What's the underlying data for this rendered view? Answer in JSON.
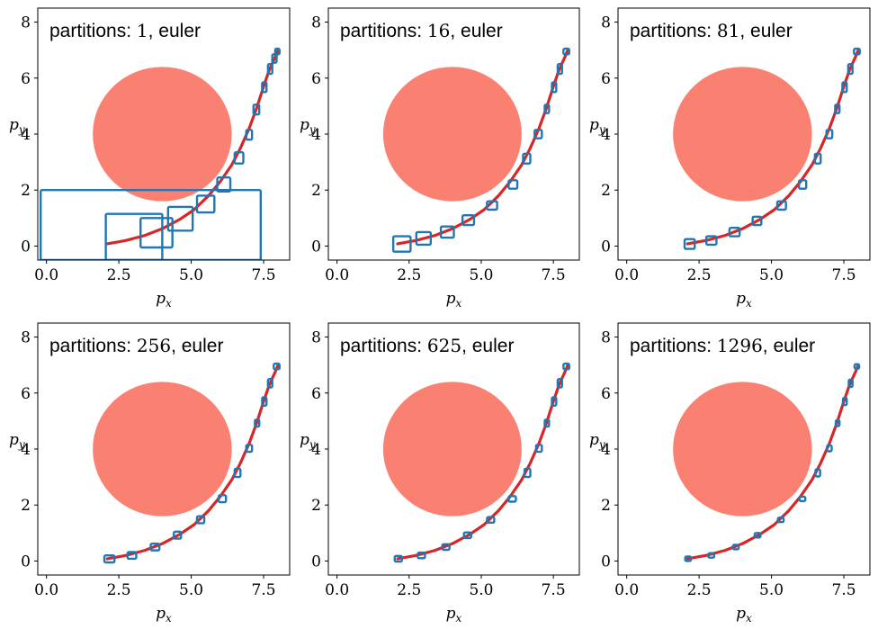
{
  "colors": {
    "obstacle": "#fa8072",
    "trajectory": "#d62728",
    "boxes": "#1f77b4",
    "background": "#ffffff"
  },
  "chart_data": [
    {
      "type": "scatter",
      "title": {
        "prefix": "partitions: ",
        "number": "1",
        "suffix": ", euler"
      },
      "xlabel": "p",
      "xlabel_sub": "x",
      "ylabel": "p",
      "ylabel_sub": "y",
      "xlim": [
        -0.3,
        8.4
      ],
      "ylim": [
        -0.5,
        8.5
      ],
      "xticks": [
        0.0,
        2.5,
        5.0,
        7.5
      ],
      "xtick_labels": [
        "0.0",
        "2.5",
        "5.0",
        "7.5"
      ],
      "yticks": [
        0,
        2,
        4,
        6,
        8
      ],
      "ytick_labels": [
        "0",
        "2",
        "4",
        "6",
        "8"
      ],
      "obstacle": {
        "center": [
          4.0,
          4.0
        ],
        "radius": 2.4
      },
      "trajectory": {
        "x": [
          2.1,
          2.75,
          3.4,
          4.0,
          4.6,
          5.1,
          5.6,
          6.0,
          6.4,
          6.7,
          7.0,
          7.25,
          7.5,
          7.7,
          7.9,
          8.0
        ],
        "y": [
          0.08,
          0.2,
          0.38,
          0.62,
          0.95,
          1.3,
          1.8,
          2.3,
          2.9,
          3.5,
          4.2,
          4.9,
          5.7,
          6.3,
          6.75,
          7.0
        ]
      },
      "boxes": [
        {
          "x": [
            -0.2,
            7.4
          ],
          "y": [
            -0.5,
            2.0
          ]
        },
        {
          "x": [
            2.05,
            4.0
          ],
          "y": [
            -0.5,
            1.15
          ]
        },
        {
          "x": [
            3.25,
            4.35
          ],
          "y": [
            -0.05,
            1.0
          ]
        },
        {
          "x": [
            4.2,
            5.05
          ],
          "y": [
            0.55,
            1.4
          ]
        },
        {
          "x": [
            5.2,
            5.8
          ],
          "y": [
            1.2,
            1.8
          ]
        },
        {
          "x": [
            5.9,
            6.35
          ],
          "y": [
            1.95,
            2.45
          ]
        },
        {
          "x": [
            6.5,
            6.8
          ],
          "y": [
            2.95,
            3.35
          ]
        },
        {
          "x": [
            6.9,
            7.1
          ],
          "y": [
            3.8,
            4.15
          ]
        },
        {
          "x": [
            7.15,
            7.35
          ],
          "y": [
            4.7,
            5.05
          ]
        },
        {
          "x": [
            7.45,
            7.6
          ],
          "y": [
            5.5,
            5.85
          ]
        },
        {
          "x": [
            7.65,
            7.8
          ],
          "y": [
            6.15,
            6.5
          ]
        },
        {
          "x": [
            7.8,
            7.95
          ],
          "y": [
            6.55,
            6.85
          ]
        },
        {
          "x": [
            7.9,
            8.05
          ],
          "y": [
            6.85,
            7.05
          ]
        }
      ]
    },
    {
      "type": "scatter",
      "title": {
        "prefix": "partitions: ",
        "number": "16",
        "suffix": ", euler"
      },
      "xlabel": "p",
      "xlabel_sub": "x",
      "ylabel": "p",
      "ylabel_sub": "y",
      "xlim": [
        -0.3,
        8.4
      ],
      "ylim": [
        -0.5,
        8.5
      ],
      "xticks": [
        0.0,
        2.5,
        5.0,
        7.5
      ],
      "xtick_labels": [
        "0.0",
        "2.5",
        "5.0",
        "7.5"
      ],
      "yticks": [
        0,
        2,
        4,
        6,
        8
      ],
      "ytick_labels": [
        "0",
        "2",
        "4",
        "6",
        "8"
      ],
      "obstacle": {
        "center": [
          4.0,
          4.0
        ],
        "radius": 2.4
      },
      "trajectory": {
        "x": [
          2.1,
          2.75,
          3.4,
          4.0,
          4.6,
          5.1,
          5.6,
          6.0,
          6.4,
          6.7,
          7.0,
          7.25,
          7.5,
          7.7,
          7.9,
          8.0
        ],
        "y": [
          0.08,
          0.2,
          0.38,
          0.62,
          0.95,
          1.3,
          1.8,
          2.3,
          2.9,
          3.5,
          4.2,
          4.9,
          5.7,
          6.3,
          6.75,
          7.0
        ]
      },
      "boxes": [
        {
          "x": [
            1.95,
            2.55
          ],
          "y": [
            -0.2,
            0.35
          ]
        },
        {
          "x": [
            2.75,
            3.25
          ],
          "y": [
            0.05,
            0.5
          ]
        },
        {
          "x": [
            3.6,
            4.05
          ],
          "y": [
            0.3,
            0.7
          ]
        },
        {
          "x": [
            4.35,
            4.75
          ],
          "y": [
            0.75,
            1.1
          ]
        },
        {
          "x": [
            5.2,
            5.55
          ],
          "y": [
            1.3,
            1.6
          ]
        },
        {
          "x": [
            5.95,
            6.25
          ],
          "y": [
            2.05,
            2.35
          ]
        },
        {
          "x": [
            6.45,
            6.7
          ],
          "y": [
            2.95,
            3.3
          ]
        },
        {
          "x": [
            6.85,
            7.1
          ],
          "y": [
            3.85,
            4.15
          ]
        },
        {
          "x": [
            7.2,
            7.35
          ],
          "y": [
            4.75,
            5.05
          ]
        },
        {
          "x": [
            7.45,
            7.6
          ],
          "y": [
            5.5,
            5.85
          ]
        },
        {
          "x": [
            7.65,
            7.8
          ],
          "y": [
            6.15,
            6.5
          ]
        },
        {
          "x": [
            7.85,
            8.05
          ],
          "y": [
            6.85,
            7.05
          ]
        }
      ]
    },
    {
      "type": "scatter",
      "title": {
        "prefix": "partitions: ",
        "number": "81",
        "suffix": ", euler"
      },
      "xlabel": "p",
      "xlabel_sub": "x",
      "ylabel": "p",
      "ylabel_sub": "y",
      "xlim": [
        -0.3,
        8.4
      ],
      "ylim": [
        -0.5,
        8.5
      ],
      "xticks": [
        0.0,
        2.5,
        5.0,
        7.5
      ],
      "xtick_labels": [
        "0.0",
        "2.5",
        "5.0",
        "7.5"
      ],
      "yticks": [
        0,
        2,
        4,
        6,
        8
      ],
      "ytick_labels": [
        "0",
        "2",
        "4",
        "6",
        "8"
      ],
      "obstacle": {
        "center": [
          4.0,
          4.0
        ],
        "radius": 2.4
      },
      "trajectory": {
        "x": [
          2.1,
          2.75,
          3.4,
          4.0,
          4.6,
          5.1,
          5.6,
          6.0,
          6.4,
          6.7,
          7.0,
          7.25,
          7.5,
          7.7,
          7.9,
          8.0
        ],
        "y": [
          0.08,
          0.2,
          0.38,
          0.62,
          0.95,
          1.3,
          1.8,
          2.3,
          2.9,
          3.5,
          4.2,
          4.9,
          5.7,
          6.3,
          6.75,
          7.0
        ]
      },
      "boxes": [
        {
          "x": [
            2.0,
            2.35
          ],
          "y": [
            -0.1,
            0.25
          ]
        },
        {
          "x": [
            2.75,
            3.1
          ],
          "y": [
            0.05,
            0.35
          ]
        },
        {
          "x": [
            3.55,
            3.9
          ],
          "y": [
            0.35,
            0.65
          ]
        },
        {
          "x": [
            4.35,
            4.65
          ],
          "y": [
            0.75,
            1.05
          ]
        },
        {
          "x": [
            5.2,
            5.5
          ],
          "y": [
            1.3,
            1.6
          ]
        },
        {
          "x": [
            5.95,
            6.2
          ],
          "y": [
            2.05,
            2.35
          ]
        },
        {
          "x": [
            6.5,
            6.7
          ],
          "y": [
            2.95,
            3.3
          ]
        },
        {
          "x": [
            6.9,
            7.1
          ],
          "y": [
            3.85,
            4.15
          ]
        },
        {
          "x": [
            7.2,
            7.35
          ],
          "y": [
            4.75,
            5.05
          ]
        },
        {
          "x": [
            7.45,
            7.6
          ],
          "y": [
            5.5,
            5.85
          ]
        },
        {
          "x": [
            7.65,
            7.8
          ],
          "y": [
            6.15,
            6.5
          ]
        },
        {
          "x": [
            7.85,
            8.05
          ],
          "y": [
            6.85,
            7.05
          ]
        }
      ]
    },
    {
      "type": "scatter",
      "title": {
        "prefix": "partitions: ",
        "number": "256",
        "suffix": ", euler"
      },
      "xlabel": "p",
      "xlabel_sub": "x",
      "ylabel": "p",
      "ylabel_sub": "y",
      "xlim": [
        -0.3,
        8.4
      ],
      "ylim": [
        -0.5,
        8.5
      ],
      "xticks": [
        0.0,
        2.5,
        5.0,
        7.5
      ],
      "xtick_labels": [
        "0.0",
        "2.5",
        "5.0",
        "7.5"
      ],
      "yticks": [
        0,
        2,
        4,
        6,
        8
      ],
      "ytick_labels": [
        "0",
        "2",
        "4",
        "6",
        "8"
      ],
      "obstacle": {
        "center": [
          4.0,
          4.0
        ],
        "radius": 2.4
      },
      "trajectory": {
        "x": [
          2.1,
          2.75,
          3.4,
          4.0,
          4.6,
          5.1,
          5.6,
          6.0,
          6.4,
          6.7,
          7.0,
          7.25,
          7.5,
          7.7,
          7.9,
          8.0
        ],
        "y": [
          0.08,
          0.2,
          0.38,
          0.62,
          0.95,
          1.3,
          1.8,
          2.3,
          2.9,
          3.5,
          4.2,
          4.9,
          5.7,
          6.3,
          6.75,
          7.0
        ]
      },
      "boxes": [
        {
          "x": [
            2.0,
            2.35
          ],
          "y": [
            -0.05,
            0.2
          ]
        },
        {
          "x": [
            2.8,
            3.1
          ],
          "y": [
            0.08,
            0.32
          ]
        },
        {
          "x": [
            3.6,
            3.9
          ],
          "y": [
            0.38,
            0.62
          ]
        },
        {
          "x": [
            4.4,
            4.65
          ],
          "y": [
            0.8,
            1.05
          ]
        },
        {
          "x": [
            5.2,
            5.45
          ],
          "y": [
            1.35,
            1.6
          ]
        },
        {
          "x": [
            5.95,
            6.2
          ],
          "y": [
            2.1,
            2.35
          ]
        },
        {
          "x": [
            6.5,
            6.7
          ],
          "y": [
            3.0,
            3.3
          ]
        },
        {
          "x": [
            6.9,
            7.1
          ],
          "y": [
            3.9,
            4.15
          ]
        },
        {
          "x": [
            7.2,
            7.35
          ],
          "y": [
            4.8,
            5.05
          ]
        },
        {
          "x": [
            7.45,
            7.6
          ],
          "y": [
            5.55,
            5.85
          ]
        },
        {
          "x": [
            7.65,
            7.8
          ],
          "y": [
            6.2,
            6.5
          ]
        },
        {
          "x": [
            7.85,
            8.05
          ],
          "y": [
            6.85,
            7.05
          ]
        }
      ]
    },
    {
      "type": "scatter",
      "title": {
        "prefix": "partitions: ",
        "number": "625",
        "suffix": ", euler"
      },
      "xlabel": "p",
      "xlabel_sub": "x",
      "ylabel": "p",
      "ylabel_sub": "y",
      "xlim": [
        -0.3,
        8.4
      ],
      "ylim": [
        -0.5,
        8.5
      ],
      "xticks": [
        0.0,
        2.5,
        5.0,
        7.5
      ],
      "xtick_labels": [
        "0.0",
        "2.5",
        "5.0",
        "7.5"
      ],
      "yticks": [
        0,
        2,
        4,
        6,
        8
      ],
      "ytick_labels": [
        "0",
        "2",
        "4",
        "6",
        "8"
      ],
      "obstacle": {
        "center": [
          4.0,
          4.0
        ],
        "radius": 2.4
      },
      "trajectory": {
        "x": [
          2.1,
          2.75,
          3.4,
          4.0,
          4.6,
          5.1,
          5.6,
          6.0,
          6.4,
          6.7,
          7.0,
          7.25,
          7.5,
          7.7,
          7.9,
          8.0
        ],
        "y": [
          0.08,
          0.2,
          0.38,
          0.62,
          0.95,
          1.3,
          1.8,
          2.3,
          2.9,
          3.5,
          4.2,
          4.9,
          5.7,
          6.3,
          6.75,
          7.0
        ]
      },
      "boxes": [
        {
          "x": [
            2.0,
            2.25
          ],
          "y": [
            -0.02,
            0.18
          ]
        },
        {
          "x": [
            2.8,
            3.05
          ],
          "y": [
            0.1,
            0.3
          ]
        },
        {
          "x": [
            3.65,
            3.9
          ],
          "y": [
            0.4,
            0.6
          ]
        },
        {
          "x": [
            4.4,
            4.65
          ],
          "y": [
            0.82,
            1.02
          ]
        },
        {
          "x": [
            5.2,
            5.45
          ],
          "y": [
            1.37,
            1.57
          ]
        },
        {
          "x": [
            5.95,
            6.2
          ],
          "y": [
            2.12,
            2.32
          ]
        },
        {
          "x": [
            6.5,
            6.7
          ],
          "y": [
            3.0,
            3.3
          ]
        },
        {
          "x": [
            6.9,
            7.1
          ],
          "y": [
            3.9,
            4.15
          ]
        },
        {
          "x": [
            7.2,
            7.35
          ],
          "y": [
            4.8,
            5.05
          ]
        },
        {
          "x": [
            7.45,
            7.6
          ],
          "y": [
            5.55,
            5.85
          ]
        },
        {
          "x": [
            7.65,
            7.8
          ],
          "y": [
            6.2,
            6.5
          ]
        },
        {
          "x": [
            7.85,
            8.05
          ],
          "y": [
            6.85,
            7.05
          ]
        }
      ]
    },
    {
      "type": "scatter",
      "title": {
        "prefix": "partitions: ",
        "number": "1296",
        "suffix": ", euler"
      },
      "xlabel": "p",
      "xlabel_sub": "x",
      "ylabel": "p",
      "ylabel_sub": "y",
      "xlim": [
        -0.3,
        8.4
      ],
      "ylim": [
        -0.5,
        8.5
      ],
      "xticks": [
        0.0,
        2.5,
        5.0,
        7.5
      ],
      "xtick_labels": [
        "0.0",
        "2.5",
        "5.0",
        "7.5"
      ],
      "yticks": [
        0,
        2,
        4,
        6,
        8
      ],
      "ytick_labels": [
        "0",
        "2",
        "4",
        "6",
        "8"
      ],
      "obstacle": {
        "center": [
          4.0,
          4.0
        ],
        "radius": 2.4
      },
      "trajectory": {
        "x": [
          2.1,
          2.75,
          3.4,
          4.0,
          4.6,
          5.1,
          5.6,
          6.0,
          6.4,
          6.7,
          7.0,
          7.25,
          7.5,
          7.7,
          7.9,
          8.0
        ],
        "y": [
          0.08,
          0.2,
          0.38,
          0.62,
          0.95,
          1.3,
          1.8,
          2.3,
          2.9,
          3.5,
          4.2,
          4.9,
          5.7,
          6.3,
          6.75,
          7.0
        ]
      },
      "boxes": [
        {
          "x": [
            2.02,
            2.22
          ],
          "y": [
            0.0,
            0.16
          ]
        },
        {
          "x": [
            2.82,
            3.02
          ],
          "y": [
            0.12,
            0.28
          ]
        },
        {
          "x": [
            3.67,
            3.87
          ],
          "y": [
            0.42,
            0.58
          ]
        },
        {
          "x": [
            4.42,
            4.62
          ],
          "y": [
            0.84,
            1.0
          ]
        },
        {
          "x": [
            5.22,
            5.42
          ],
          "y": [
            1.39,
            1.55
          ]
        },
        {
          "x": [
            5.97,
            6.17
          ],
          "y": [
            2.14,
            2.3
          ]
        },
        {
          "x": [
            6.52,
            6.68
          ],
          "y": [
            3.02,
            3.28
          ]
        },
        {
          "x": [
            6.92,
            7.08
          ],
          "y": [
            3.92,
            4.13
          ]
        },
        {
          "x": [
            7.22,
            7.35
          ],
          "y": [
            4.82,
            5.03
          ]
        },
        {
          "x": [
            7.47,
            7.6
          ],
          "y": [
            5.57,
            5.83
          ]
        },
        {
          "x": [
            7.67,
            7.8
          ],
          "y": [
            6.22,
            6.48
          ]
        },
        {
          "x": [
            7.87,
            8.03
          ],
          "y": [
            6.87,
            7.03
          ]
        }
      ]
    }
  ]
}
